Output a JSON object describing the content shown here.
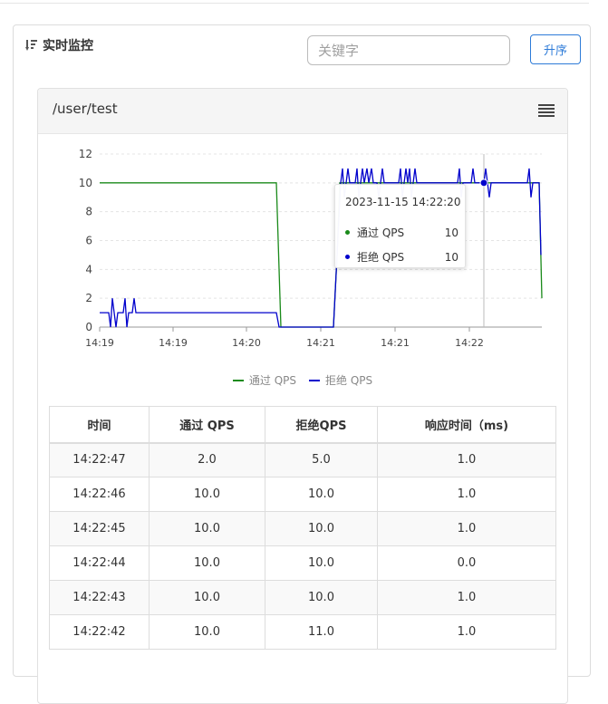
{
  "panel": {
    "title": "实时监控",
    "search_placeholder": "关键字",
    "sort_label": "升序"
  },
  "card": {
    "title": "/user/test"
  },
  "chart_data": {
    "type": "line",
    "title": "",
    "xlabel": "",
    "ylabel": "",
    "ylim": [
      0,
      12
    ],
    "yticks": [
      0,
      2,
      4,
      6,
      8,
      10,
      12
    ],
    "xticks": [
      "14:19",
      "14:19",
      "14:20",
      "14:21",
      "14:21",
      "14:22"
    ],
    "grid": true,
    "legend_placement": "bottom",
    "series": [
      {
        "name": "通过 QPS",
        "color": "#1a8a1a",
        "points": [
          [
            0,
            10
          ],
          [
            195,
            10
          ],
          [
            200,
            0
          ],
          [
            258,
            0
          ],
          [
            262,
            5
          ],
          [
            265,
            10
          ],
          [
            485,
            10
          ],
          [
            488,
            2
          ]
        ]
      },
      {
        "name": "拒绝 QPS",
        "color": "#0000cc",
        "points": [
          [
            0,
            1
          ],
          [
            10,
            1
          ],
          [
            12,
            0
          ],
          [
            14,
            2
          ],
          [
            16,
            1
          ],
          [
            18,
            0
          ],
          [
            20,
            1
          ],
          [
            26,
            1
          ],
          [
            28,
            2
          ],
          [
            30,
            0
          ],
          [
            32,
            1
          ],
          [
            36,
            1
          ],
          [
            38,
            2
          ],
          [
            40,
            1
          ],
          [
            195,
            1
          ],
          [
            198,
            0
          ],
          [
            258,
            0
          ],
          [
            262,
            5
          ],
          [
            266,
            10
          ],
          [
            268,
            11
          ],
          [
            270,
            9
          ],
          [
            272,
            10
          ],
          [
            274,
            11
          ],
          [
            276,
            10
          ],
          [
            282,
            10
          ],
          [
            284,
            11
          ],
          [
            286,
            9
          ],
          [
            288,
            10
          ],
          [
            290,
            11
          ],
          [
            292,
            10
          ],
          [
            295,
            11
          ],
          [
            297,
            10
          ],
          [
            300,
            11
          ],
          [
            302,
            10
          ],
          [
            306,
            10
          ],
          [
            308,
            9
          ],
          [
            310,
            10
          ],
          [
            312,
            11
          ],
          [
            314,
            10
          ],
          [
            330,
            10
          ],
          [
            332,
            11
          ],
          [
            334,
            9
          ],
          [
            336,
            10
          ],
          [
            338,
            11
          ],
          [
            340,
            10
          ],
          [
            342,
            11
          ],
          [
            344,
            9
          ],
          [
            346,
            10
          ],
          [
            348,
            11
          ],
          [
            350,
            10
          ],
          [
            395,
            10
          ],
          [
            397,
            11
          ],
          [
            399,
            9
          ],
          [
            401,
            10
          ],
          [
            410,
            10
          ],
          [
            412,
            11
          ],
          [
            414,
            10
          ],
          [
            424,
            10
          ],
          [
            426,
            11
          ],
          [
            428,
            10
          ],
          [
            430,
            9
          ],
          [
            432,
            10
          ],
          [
            472,
            10
          ],
          [
            474,
            11
          ],
          [
            476,
            9
          ],
          [
            478,
            10
          ],
          [
            485,
            10
          ],
          [
            487,
            5
          ]
        ]
      }
    ],
    "crosshair_x": 424,
    "tooltip": {
      "time": "2023-11-15 14:22:20",
      "rows": [
        {
          "name": "通过 QPS",
          "value": "10",
          "color": "#1a8a1a"
        },
        {
          "name": "拒绝 QPS",
          "value": "10",
          "color": "#0000cc"
        }
      ]
    }
  },
  "legend": [
    {
      "name": "通过 QPS",
      "color": "#1a8a1a"
    },
    {
      "name": "拒绝 QPS",
      "color": "#0000cc"
    }
  ],
  "table": {
    "headers": [
      "时间",
      "通过 QPS",
      "拒绝QPS",
      "响应时间（ms)"
    ],
    "rows": [
      [
        "14:22:47",
        "2.0",
        "5.0",
        "1.0"
      ],
      [
        "14:22:46",
        "10.0",
        "10.0",
        "1.0"
      ],
      [
        "14:22:45",
        "10.0",
        "10.0",
        "1.0"
      ],
      [
        "14:22:44",
        "10.0",
        "10.0",
        "0.0"
      ],
      [
        "14:22:43",
        "10.0",
        "10.0",
        "1.0"
      ],
      [
        "14:22:42",
        "10.0",
        "11.0",
        "1.0"
      ]
    ]
  }
}
